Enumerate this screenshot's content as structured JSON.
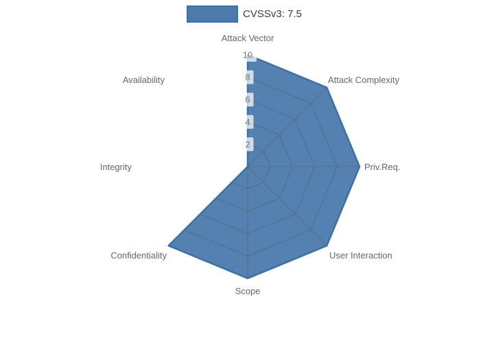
{
  "chart": {
    "legend": {
      "label": "CVSSv3: 7.5"
    }
  },
  "chart_data": {
    "type": "radar",
    "title": "",
    "legend_position": "top-center",
    "categories": [
      "Attack Vector",
      "Attack Complexity",
      "Priv.Req.",
      "User Interaction",
      "Scope",
      "Confidentiality",
      "Integrity",
      "Availability"
    ],
    "series": [
      {
        "name": "CVSSv3: 7.5",
        "values": [
          10,
          10,
          10,
          10,
          10,
          10,
          0,
          0
        ]
      }
    ],
    "range": [
      0,
      10
    ],
    "radial_ticks": [
      2,
      4,
      6,
      8,
      10
    ],
    "grid": "spider-web rings and spokes, visible only under the filled area",
    "colors": {
      "series_fill": "#4b7aab",
      "series_line": "#3c6fa3",
      "grid_line": "#53708e",
      "axis_label": "#666666",
      "tick_label": "#757575",
      "tick_backdrop": "rgba(255,255,255,0.72)",
      "legend_text": "#3a3a3a",
      "background": "#ffffff"
    }
  }
}
